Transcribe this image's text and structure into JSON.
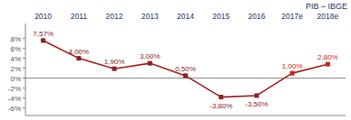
{
  "chart_data": {
    "type": "line",
    "title": "PIB – IBGE",
    "categories": [
      "2010",
      "2011",
      "2012",
      "2013",
      "2014",
      "2015",
      "2016",
      "2017e",
      "2018e"
    ],
    "values": [
      7.57,
      4.0,
      1.9,
      3.0,
      0.5,
      -3.8,
      -3.5,
      1.0,
      2.8
    ],
    "value_labels": [
      "7,57%",
      "4,00%",
      "1,90%",
      "3,00%",
      "0,50%",
      "-3,80%",
      "-3,50%",
      "1,00%",
      "2,80%"
    ],
    "color": "#A52020",
    "colors": [
      "#8B2222",
      "#8B2222",
      "#8B2222",
      "#8B2222",
      "#8B2222",
      "#8B2222",
      "#8B2222",
      "#CC2222",
      "#CC2222"
    ],
    "marker": "square",
    "data_labels": true,
    "grid": false,
    "ylim": [
      -7.5,
      11.0
    ],
    "yticks": [
      {
        "value": -6,
        "label": "-6%"
      },
      {
        "value": -4,
        "label": "-4%"
      },
      {
        "value": -2,
        "label": "-2%"
      },
      {
        "value": 0,
        "label": "0%"
      },
      {
        "value": 2,
        "label": "2%"
      },
      {
        "value": 4,
        "label": "4%"
      },
      {
        "value": 6,
        "label": "6%"
      },
      {
        "value": 8,
        "label": "8%"
      }
    ]
  }
}
